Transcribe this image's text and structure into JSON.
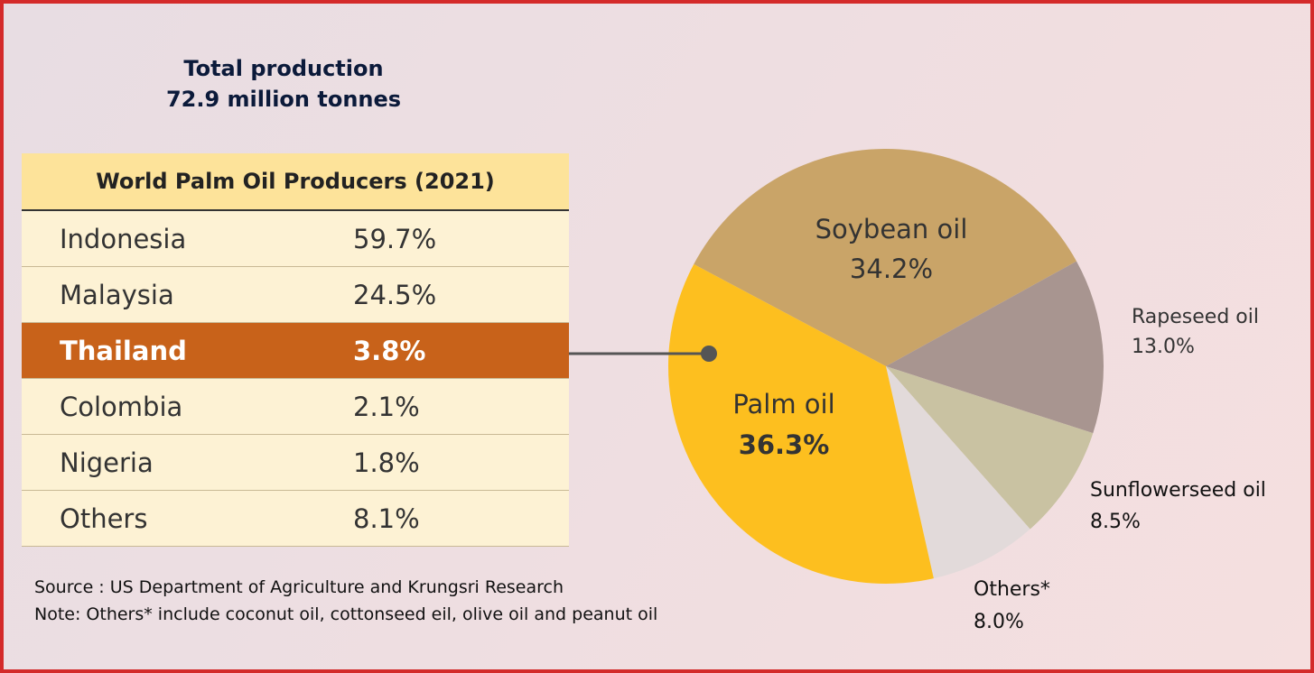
{
  "header": {
    "title": "Total production",
    "subtitle": "72.9 million tonnes"
  },
  "table": {
    "title": "World Palm Oil Producers (2021)",
    "rows": [
      [
        "Indonesia",
        "59.7%"
      ],
      [
        "Malaysia",
        "24.5%"
      ],
      [
        "Thailand",
        "3.8%"
      ],
      [
        "Colombia",
        "2.1%"
      ],
      [
        "Nigeria",
        "1.8%"
      ],
      [
        "Others",
        "8.1%"
      ]
    ]
  },
  "notes": {
    "source": "Source : US Department of Agriculture and Krungsri Research",
    "note": "Note: Others* include coconut oil, cottonseed eil, olive oil and peanut oil"
  },
  "chart_data": {
    "type": "pie",
    "categories": [
      "Soybean oil",
      "Rapeseed oil",
      "Sunflowerseed oil",
      "Others*",
      "Palm oil"
    ],
    "values": [
      34.2,
      13.0,
      8.5,
      8.0,
      36.3
    ],
    "value_labels": [
      "34.2%",
      "13.0%",
      "8.5%",
      "8.0%",
      "36.3%"
    ],
    "colors": [
      "#c9a468",
      "#a89590",
      "#c9c2a2",
      "#e2dada",
      "#fdbf1f"
    ]
  }
}
